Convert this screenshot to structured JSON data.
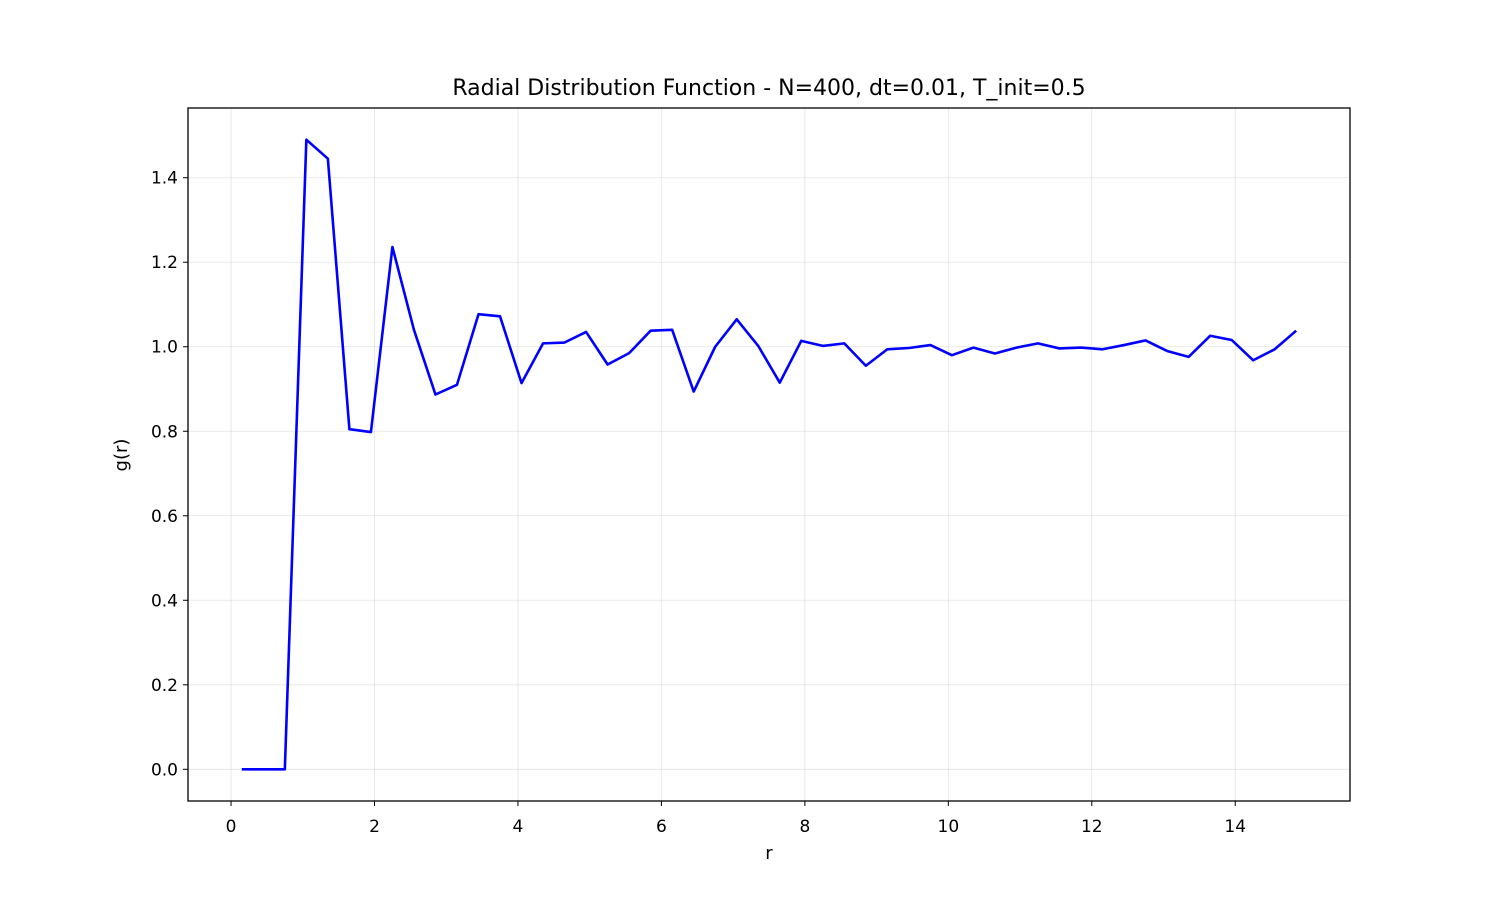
{
  "chart_data": {
    "type": "line",
    "title": "Radial Distribution Function - N=400, dt=0.01, T_init=0.5",
    "xlabel": "r",
    "ylabel": "g(r)",
    "xlim": [
      -0.6,
      15.6
    ],
    "ylim": [
      -0.075,
      1.565
    ],
    "xticks": [
      0,
      2,
      4,
      6,
      8,
      10,
      12,
      14
    ],
    "xtick_labels": [
      "0",
      "2",
      "4",
      "6",
      "8",
      "10",
      "12",
      "14"
    ],
    "yticks": [
      0.0,
      0.2,
      0.4,
      0.6,
      0.8,
      1.0,
      1.2,
      1.4
    ],
    "ytick_labels": [
      "0.0",
      "0.2",
      "0.4",
      "0.6",
      "0.8",
      "1.0",
      "1.2",
      "1.4"
    ],
    "grid": true,
    "line_color": "#0000ff",
    "series": [
      {
        "x": [
          0.15,
          0.45,
          0.75,
          1.05,
          1.35,
          1.65,
          1.95,
          2.25,
          2.55,
          2.85,
          3.15,
          3.45,
          3.75,
          4.05,
          4.35,
          4.65,
          4.95,
          5.25,
          5.55,
          5.85,
          6.15,
          6.45,
          6.75,
          7.05,
          7.35,
          7.65,
          7.95,
          8.25,
          8.55,
          8.85,
          9.15,
          9.45,
          9.75,
          10.05,
          10.35,
          10.65,
          10.95,
          11.25,
          11.55,
          11.85,
          12.15,
          12.45,
          12.75,
          13.05,
          13.35,
          13.65,
          13.95,
          14.25,
          14.55,
          14.85
        ],
        "values": [
          0.0,
          0.0,
          0.0,
          1.49,
          1.445,
          0.805,
          0.798,
          1.236,
          1.04,
          0.887,
          0.91,
          1.077,
          1.072,
          0.914,
          1.008,
          1.01,
          1.035,
          0.958,
          0.985,
          1.038,
          1.04,
          0.894,
          1.0,
          1.065,
          1.002,
          0.915,
          1.014,
          1.002,
          1.008,
          0.955,
          0.994,
          0.997,
          1.004,
          0.98,
          0.998,
          0.984,
          0.998,
          1.008,
          0.996,
          0.998,
          0.994,
          1.004,
          1.015,
          0.99,
          0.976,
          1.026,
          1.016,
          0.968,
          0.994,
          1.038
        ]
      }
    ]
  }
}
